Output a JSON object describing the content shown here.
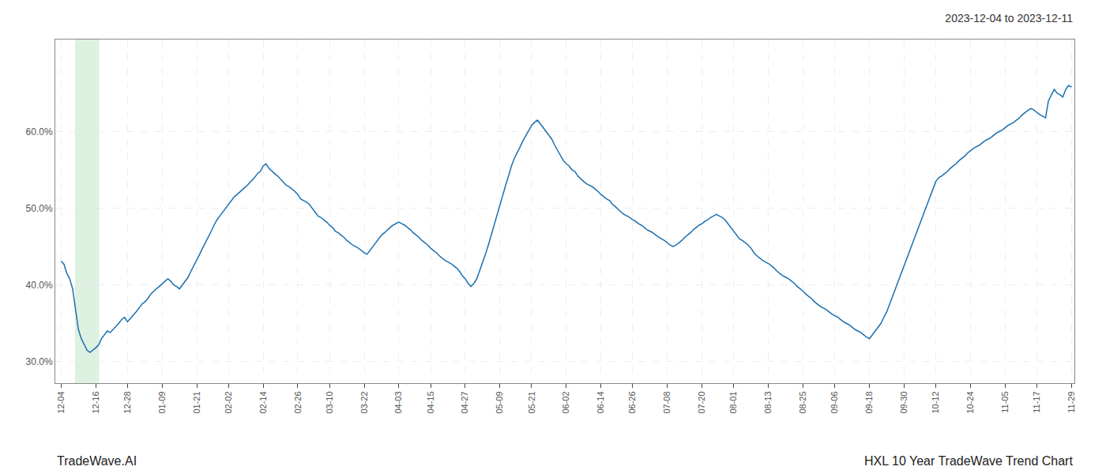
{
  "chart_data": {
    "type": "line",
    "title": "2023-12-04 to 2023-12-11",
    "annotations": [
      "TradeWave.AI",
      "HXL 10 Year TradeWave Trend Chart"
    ],
    "color": "#1a6faf",
    "grid": true,
    "ylim": [
      0.272,
      0.72
    ],
    "yticks": [
      {
        "value": 0.3,
        "label": "30.0%"
      },
      {
        "value": 0.4,
        "label": "40.0%"
      },
      {
        "value": 0.5,
        "label": "50.0%"
      },
      {
        "value": 0.6,
        "label": "60.0%"
      }
    ],
    "categories": [
      "12-04",
      null,
      null,
      null,
      null,
      null,
      null,
      null,
      null,
      null,
      null,
      null,
      "12-16",
      null,
      null,
      null,
      null,
      null,
      null,
      null,
      null,
      null,
      null,
      "12-28",
      null,
      null,
      null,
      null,
      null,
      null,
      null,
      null,
      null,
      null,
      null,
      "01-09",
      null,
      null,
      null,
      null,
      null,
      null,
      null,
      null,
      null,
      null,
      null,
      "01-21",
      null,
      null,
      null,
      null,
      null,
      null,
      null,
      null,
      null,
      null,
      "02-02",
      null,
      null,
      null,
      null,
      null,
      null,
      null,
      null,
      null,
      null,
      null,
      "02-14",
      null,
      null,
      null,
      null,
      null,
      null,
      null,
      null,
      null,
      null,
      null,
      "02-26",
      null,
      null,
      null,
      null,
      null,
      null,
      null,
      null,
      null,
      null,
      "03-10",
      null,
      null,
      null,
      null,
      null,
      null,
      null,
      null,
      null,
      null,
      null,
      "03-22",
      null,
      null,
      null,
      null,
      null,
      null,
      null,
      null,
      null,
      null,
      null,
      "04-03",
      null,
      null,
      null,
      null,
      null,
      null,
      null,
      null,
      null,
      null,
      "04-15",
      null,
      null,
      null,
      null,
      null,
      null,
      null,
      null,
      null,
      null,
      null,
      "04-27",
      null,
      null,
      null,
      null,
      null,
      null,
      null,
      null,
      null,
      null,
      null,
      "05-09",
      null,
      null,
      null,
      null,
      null,
      null,
      null,
      null,
      null,
      null,
      "05-21",
      null,
      null,
      null,
      null,
      null,
      null,
      null,
      null,
      null,
      null,
      null,
      "06-02",
      null,
      null,
      null,
      null,
      null,
      null,
      null,
      null,
      null,
      null,
      null,
      "06-14",
      null,
      null,
      null,
      null,
      null,
      null,
      null,
      null,
      null,
      null,
      "06-26",
      null,
      null,
      null,
      null,
      null,
      null,
      null,
      null,
      null,
      null,
      null,
      "07-08",
      null,
      null,
      null,
      null,
      null,
      null,
      null,
      null,
      null,
      null,
      null,
      "07-20",
      null,
      null,
      null,
      null,
      null,
      null,
      null,
      null,
      null,
      null,
      "08-01",
      null,
      null,
      null,
      null,
      null,
      null,
      null,
      null,
      null,
      null,
      null,
      "08-13",
      null,
      null,
      null,
      null,
      null,
      null,
      null,
      null,
      null,
      null,
      null,
      "08-25",
      null,
      null,
      null,
      null,
      null,
      null,
      null,
      null,
      null,
      null,
      "09-06",
      null,
      null,
      null,
      null,
      null,
      null,
      null,
      null,
      null,
      null,
      null,
      "09-18",
      null,
      null,
      null,
      null,
      null,
      null,
      null,
      null,
      null,
      null,
      null,
      "09-30",
      null,
      null,
      null,
      null,
      null,
      null,
      null,
      null,
      null,
      null,
      "10-12",
      null,
      null,
      null,
      null,
      null,
      null,
      null,
      null,
      null,
      null,
      null,
      "10-24",
      null,
      null,
      null,
      null,
      null,
      null,
      null,
      null,
      null,
      null,
      null,
      "11-05",
      null,
      null,
      null,
      null,
      null,
      null,
      null,
      null,
      null,
      null,
      "11-17",
      null,
      null,
      null,
      null,
      null,
      null,
      null,
      null,
      null,
      null,
      null,
      "11-29"
    ],
    "values": [
      0.431,
      0.427,
      0.415,
      0.408,
      0.395,
      0.37,
      0.342,
      0.33,
      0.322,
      0.315,
      0.312,
      0.315,
      0.318,
      0.322,
      0.33,
      0.335,
      0.34,
      0.338,
      0.342,
      0.345,
      0.35,
      0.355,
      0.358,
      0.352,
      0.356,
      0.36,
      0.365,
      0.37,
      0.375,
      0.378,
      0.382,
      0.388,
      0.392,
      0.395,
      0.398,
      0.402,
      0.405,
      0.408,
      0.405,
      0.4,
      0.398,
      0.395,
      0.4,
      0.405,
      0.41,
      0.418,
      0.425,
      0.432,
      0.44,
      0.448,
      0.455,
      0.462,
      0.47,
      0.478,
      0.485,
      0.49,
      0.495,
      0.5,
      0.505,
      0.51,
      0.515,
      0.518,
      0.522,
      0.525,
      0.528,
      0.532,
      0.535,
      0.54,
      0.545,
      0.548,
      0.555,
      0.558,
      0.552,
      0.548,
      0.545,
      0.542,
      0.538,
      0.535,
      0.53,
      0.528,
      0.525,
      0.522,
      0.518,
      0.512,
      0.51,
      0.508,
      0.505,
      0.5,
      0.495,
      0.49,
      0.488,
      0.485,
      0.482,
      0.478,
      0.475,
      0.47,
      0.468,
      0.465,
      0.462,
      0.458,
      0.455,
      0.452,
      0.45,
      0.448,
      0.445,
      0.442,
      0.44,
      0.445,
      0.45,
      0.455,
      0.46,
      0.465,
      0.468,
      0.472,
      0.475,
      0.478,
      0.48,
      0.482,
      0.48,
      0.478,
      0.475,
      0.472,
      0.468,
      0.465,
      0.462,
      0.458,
      0.455,
      0.452,
      0.448,
      0.445,
      0.442,
      0.438,
      0.435,
      0.432,
      0.43,
      0.428,
      0.425,
      0.422,
      0.418,
      0.412,
      0.408,
      0.402,
      0.398,
      0.402,
      0.408,
      0.418,
      0.428,
      0.44,
      0.452,
      0.465,
      0.48,
      0.492,
      0.505,
      0.518,
      0.53,
      0.542,
      0.555,
      0.565,
      0.572,
      0.58,
      0.588,
      0.595,
      0.602,
      0.608,
      0.612,
      0.615,
      0.61,
      0.605,
      0.6,
      0.595,
      0.59,
      0.582,
      0.575,
      0.568,
      0.562,
      0.558,
      0.555,
      0.55,
      0.548,
      0.542,
      0.538,
      0.535,
      0.532,
      0.53,
      0.528,
      0.525,
      0.522,
      0.518,
      0.515,
      0.512,
      0.51,
      0.505,
      0.502,
      0.498,
      0.495,
      0.492,
      0.49,
      0.488,
      0.485,
      0.483,
      0.48,
      0.478,
      0.475,
      0.472,
      0.47,
      0.468,
      0.465,
      0.462,
      0.46,
      0.458,
      0.455,
      0.452,
      0.45,
      0.452,
      0.455,
      0.458,
      0.462,
      0.465,
      0.468,
      0.472,
      0.475,
      0.478,
      0.48,
      0.483,
      0.485,
      0.488,
      0.49,
      0.492,
      0.49,
      0.488,
      0.485,
      0.48,
      0.475,
      0.47,
      0.465,
      0.46,
      0.458,
      0.455,
      0.452,
      0.448,
      0.442,
      0.438,
      0.435,
      0.432,
      0.43,
      0.428,
      0.425,
      0.422,
      0.418,
      0.415,
      0.412,
      0.41,
      0.408,
      0.405,
      0.402,
      0.398,
      0.395,
      0.392,
      0.388,
      0.385,
      0.382,
      0.378,
      0.375,
      0.372,
      0.37,
      0.368,
      0.365,
      0.362,
      0.36,
      0.358,
      0.355,
      0.352,
      0.35,
      0.348,
      0.345,
      0.342,
      0.34,
      0.338,
      0.335,
      0.332,
      0.33,
      0.335,
      0.34,
      0.345,
      0.35,
      0.358,
      0.365,
      0.375,
      0.385,
      0.395,
      0.405,
      0.415,
      0.425,
      0.435,
      0.445,
      0.455,
      0.465,
      0.475,
      0.485,
      0.495,
      0.505,
      0.515,
      0.525,
      0.535,
      0.54,
      0.542,
      0.545,
      0.548,
      0.552,
      0.555,
      0.558,
      0.562,
      0.565,
      0.568,
      0.572,
      0.575,
      0.578,
      0.58,
      0.582,
      0.585,
      0.588,
      0.59,
      0.592,
      0.595,
      0.598,
      0.6,
      0.602,
      0.605,
      0.608,
      0.61,
      0.612,
      0.615,
      0.618,
      0.622,
      0.625,
      0.628,
      0.63,
      0.628,
      0.625,
      0.622,
      0.62,
      0.618,
      0.64,
      0.648,
      0.655,
      0.65,
      0.648,
      0.645,
      0.655,
      0.66,
      0.658
    ]
  }
}
